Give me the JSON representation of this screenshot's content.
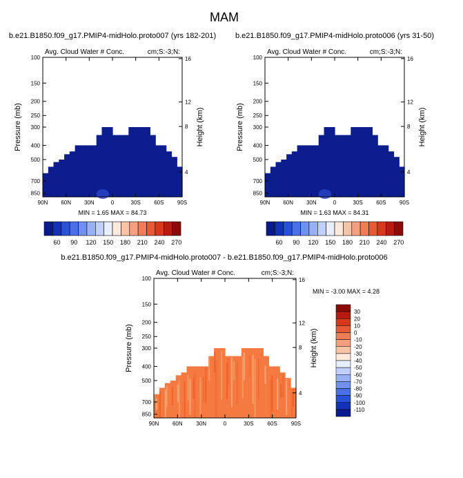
{
  "figure_title": "MAM",
  "chart_data": [
    {
      "type": "heatmap",
      "panel": "top-left",
      "title": "b.e21.B1850.f09_g17.PMIP4-midHolo.proto007 (yrs 182-201)",
      "variable": "Avg. Cloud Water # Conc.",
      "units": "cm;S:-3;N:",
      "ylabel": "Pressure (mb)",
      "ylabel_right": "Height (km)",
      "x_ticks": [
        "90N",
        "60N",
        "30N",
        "0",
        "30S",
        "60S",
        "90S"
      ],
      "y_ticks": [
        "100",
        "150",
        "200",
        "250",
        "300",
        "400",
        "500",
        "700",
        "850"
      ],
      "y2_ticks": [
        "16",
        "12",
        "8",
        "4"
      ],
      "stats": "MIN = 1.65 MAX = 84.73",
      "min": 1.65,
      "max": 84.73
    },
    {
      "type": "heatmap",
      "panel": "top-right",
      "title": "b.e21.B1850.f09_g17.PMIP4-midHolo.proto006 (yrs 31-50)",
      "variable": "Avg. Cloud Water # Conc.",
      "units": "cm;S:-3;N:",
      "ylabel": "Pressure (mb)",
      "ylabel_right": "Height (km)",
      "x_ticks": [
        "90N",
        "60N",
        "30N",
        "0",
        "30S",
        "60S",
        "90S"
      ],
      "y_ticks": [
        "100",
        "150",
        "200",
        "250",
        "300",
        "400",
        "500",
        "700",
        "850"
      ],
      "y2_ticks": [
        "16",
        "12",
        "8",
        "4"
      ],
      "stats": "MIN = 1.63 MAX = 84.31",
      "min": 1.63,
      "max": 84.31
    },
    {
      "type": "heatmap",
      "panel": "bottom",
      "title": "b.e21.B1850.f09_g17.PMIP4-midHolo.proto007 - b.e21.B1850.f09_g17.PMIP4-midHolo.proto006",
      "variable": "Avg. Cloud Water # Conc.",
      "units": "cm;S:-3;N:",
      "ylabel": "Pressure (mb)",
      "ylabel_right": "Height (km)",
      "x_ticks": [
        "90N",
        "60N",
        "30N",
        "0",
        "30S",
        "60S",
        "90S"
      ],
      "y_ticks": [
        "100",
        "150",
        "200",
        "250",
        "300",
        "400",
        "500",
        "700",
        "850"
      ],
      "y2_ticks": [
        "16",
        "12",
        "8",
        "4"
      ],
      "stats": "MIN = -3.00 MAX = 4.28",
      "min": -3.0,
      "max": 4.28
    }
  ],
  "colorbar_top": {
    "labels": [
      "60",
      "90",
      "120",
      "150",
      "180",
      "210",
      "240",
      "270"
    ],
    "colors": [
      "#0a1a8c",
      "#1230b8",
      "#2850d8",
      "#4a70e8",
      "#7090f0",
      "#98b0f4",
      "#c0d0f8",
      "#e8eefc",
      "#fde8dc",
      "#f8c4a8",
      "#f4a080",
      "#f07c58",
      "#e85a34",
      "#d8381c",
      "#b81c10",
      "#8c0a08"
    ]
  },
  "colorbar_bottom": {
    "labels": [
      "30",
      "20",
      "10",
      "0",
      "-10",
      "-20",
      "-30",
      "-40",
      "-50",
      "-60",
      "-70",
      "-80",
      "-90",
      "-100",
      "-110"
    ],
    "colors": [
      "#8c0a08",
      "#b81c10",
      "#d8381c",
      "#e85a34",
      "#f07c58",
      "#f4a080",
      "#f8c4a8",
      "#fde8dc",
      "#e8eefc",
      "#c0d0f8",
      "#98b0f4",
      "#7090f0",
      "#4a70e8",
      "#2850d8",
      "#1230b8",
      "#0a1a8c"
    ]
  }
}
